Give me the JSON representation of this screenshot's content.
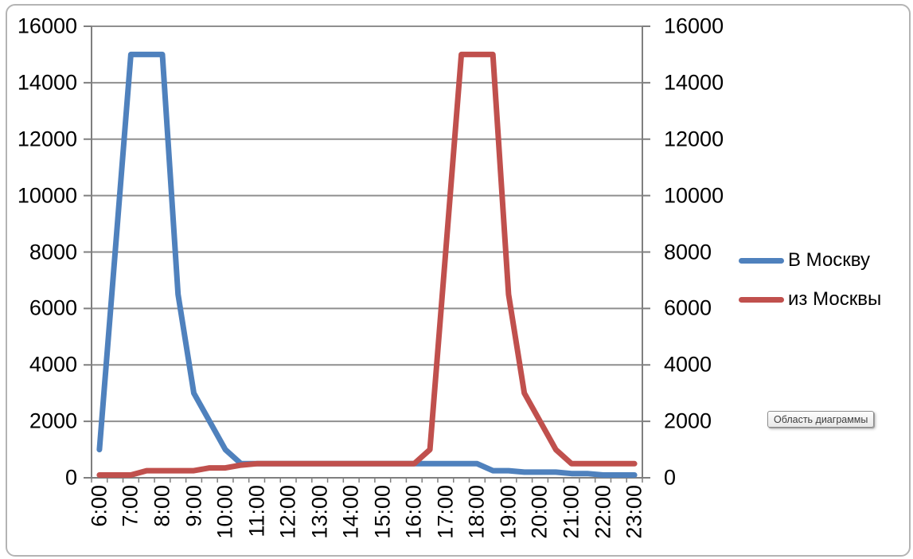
{
  "chart_data": {
    "type": "line",
    "title": "",
    "xlabel": "",
    "ylabel": "",
    "categories": [
      "6:00",
      "6:30",
      "7:00",
      "7:30",
      "8:00",
      "8:30",
      "9:00",
      "9:30",
      "10:00",
      "10:30",
      "11:00",
      "11:30",
      "12:00",
      "12:30",
      "13:00",
      "13:30",
      "14:00",
      "14:30",
      "15:00",
      "15:30",
      "16:00",
      "16:30",
      "17:00",
      "17:30",
      "18:00",
      "18:30",
      "19:00",
      "19:30",
      "20:00",
      "20:30",
      "21:00",
      "21:30",
      "22:00",
      "22:30",
      "23:00"
    ],
    "x_tick_labels_shown": [
      "6:00",
      "7:00",
      "8:00",
      "9:00",
      "10:00",
      "11:00",
      "12:00",
      "13:00",
      "14:00",
      "15:00",
      "16:00",
      "17:00",
      "18:00",
      "19:00",
      "20:00",
      "21:00",
      "22:00",
      "23:00"
    ],
    "x_label_every": 2,
    "series": [
      {
        "name": "В Москву",
        "color": "#4F81BD",
        "values": [
          1000,
          8000,
          15000,
          15000,
          15000,
          6500,
          3000,
          2000,
          1000,
          500,
          500,
          500,
          500,
          500,
          500,
          500,
          500,
          500,
          500,
          500,
          500,
          500,
          500,
          500,
          500,
          250,
          250,
          200,
          200,
          200,
          150,
          150,
          100,
          100,
          100
        ]
      },
      {
        "name": "из Москвы",
        "color": "#C0504D",
        "values": [
          100,
          100,
          100,
          250,
          250,
          250,
          250,
          350,
          350,
          450,
          500,
          500,
          500,
          500,
          500,
          500,
          500,
          500,
          500,
          500,
          500,
          1000,
          8000,
          15000,
          15000,
          15000,
          6500,
          3000,
          2000,
          1000,
          500,
          500,
          500,
          500,
          500
        ]
      }
    ],
    "ylim": [
      0,
      16000
    ],
    "y_ticks": [
      0,
      2000,
      4000,
      6000,
      8000,
      10000,
      12000,
      14000,
      16000
    ],
    "grid": true,
    "secondary_y_axis": true,
    "legend_position": "right"
  },
  "tooltip": {
    "text": "Область диаграммы"
  },
  "colors": {
    "series_to_moscow": "#4F81BD",
    "series_from_moscow": "#C0504D",
    "gridline": "#8F8F8F",
    "axis": "#7F7F7F",
    "frame_border": "#B4B4B4"
  }
}
